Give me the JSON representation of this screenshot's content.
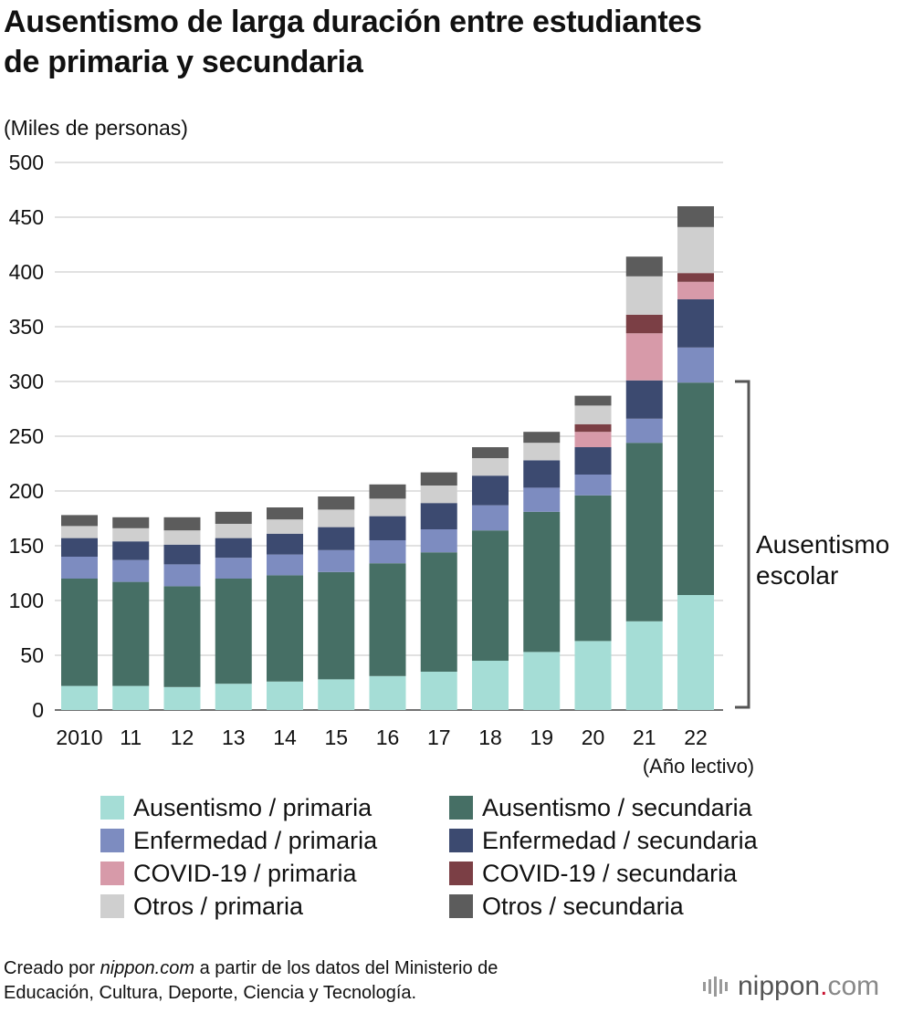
{
  "title": {
    "line1": "Ausentismo de larga duración entre estudiantes",
    "line2": "de primaria y secundaria"
  },
  "chart_data": {
    "type": "bar",
    "stacked": true,
    "unit_label": "(Miles de personas)",
    "xlabel": "(Año lectivo)",
    "ylim": [
      0,
      500
    ],
    "yticks": [
      0,
      50,
      100,
      150,
      200,
      250,
      300,
      350,
      400,
      450,
      500
    ],
    "categories": [
      "2010",
      "11",
      "12",
      "13",
      "14",
      "15",
      "16",
      "17",
      "18",
      "19",
      "20",
      "21",
      "22"
    ],
    "series": [
      {
        "name": "Ausentismo / primaria",
        "color": "#a5ddd6",
        "values": [
          22,
          22,
          21,
          24,
          26,
          28,
          31,
          35,
          45,
          53,
          63,
          81,
          105
        ]
      },
      {
        "name": "Ausentismo / secundaria",
        "color": "#466f65",
        "values": [
          98,
          95,
          92,
          96,
          97,
          98,
          103,
          109,
          119,
          128,
          133,
          163,
          194
        ]
      },
      {
        "name": "Enfermedad / primaria",
        "color": "#7d8cc0",
        "values": [
          20,
          20,
          20,
          19,
          19,
          20,
          21,
          21,
          23,
          22,
          19,
          22,
          32
        ]
      },
      {
        "name": "Enfermedad / secundaria",
        "color": "#3c4a70",
        "values": [
          17,
          17,
          18,
          18,
          19,
          21,
          22,
          24,
          27,
          25,
          25,
          35,
          44
        ]
      },
      {
        "name": "COVID-19 / primaria",
        "color": "#d79aa9",
        "values": [
          0,
          0,
          0,
          0,
          0,
          0,
          0,
          0,
          0,
          0,
          14,
          43,
          16
        ]
      },
      {
        "name": "COVID-19 / secundaria",
        "color": "#7b3f45",
        "values": [
          0,
          0,
          0,
          0,
          0,
          0,
          0,
          0,
          0,
          0,
          7,
          17,
          8
        ]
      },
      {
        "name": "Otros / primaria",
        "color": "#cfcfcf",
        "values": [
          11,
          12,
          13,
          13,
          13,
          16,
          16,
          16,
          16,
          16,
          17,
          35,
          42
        ]
      },
      {
        "name": "Otros / secundaria",
        "color": "#5c5c5c",
        "values": [
          10,
          10,
          12,
          11,
          11,
          12,
          13,
          12,
          10,
          10,
          9,
          18,
          19
        ]
      }
    ],
    "annotation": {
      "line1": "Ausentismo",
      "line2": "escolar",
      "spans_series": [
        "Ausentismo / primaria",
        "Ausentismo / secundaria"
      ]
    },
    "grid": true
  },
  "source": {
    "prefix": "Creado por ",
    "site": "nippon.com",
    "suffix": " a partir de los datos del Ministerio de",
    "line2": "Educación, Cultura, Deporte, Ciencia y Tecnología."
  },
  "logo": {
    "name": "nippon",
    "dot": ".",
    "tld": "com"
  }
}
